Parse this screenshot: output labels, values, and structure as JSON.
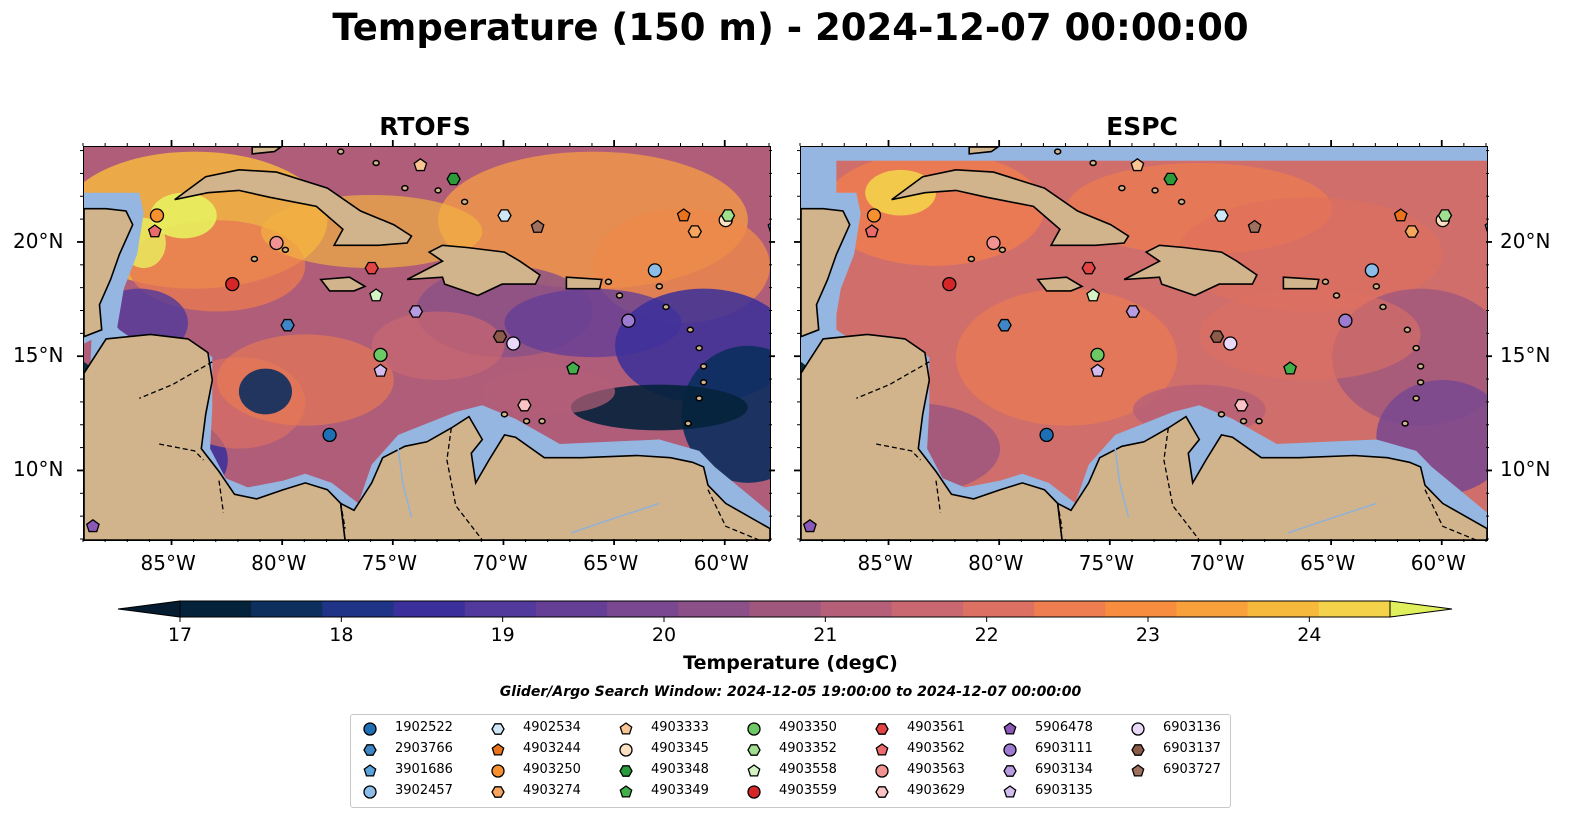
{
  "title": "Temperature (150 m) - 2024-12-07 00:00:00",
  "panels": [
    {
      "title": "RTOFS",
      "model": "rtofs"
    },
    {
      "title": "ESPC",
      "model": "espc"
    }
  ],
  "map_extent": {
    "lon": [
      -89,
      -58
    ],
    "lat": [
      7,
      24.2
    ]
  },
  "lon_ticks": [
    {
      "value": -85,
      "label": "85°W"
    },
    {
      "value": -80,
      "label": "80°W"
    },
    {
      "value": -75,
      "label": "75°W"
    },
    {
      "value": -70,
      "label": "70°W"
    },
    {
      "value": -65,
      "label": "65°W"
    },
    {
      "value": -60,
      "label": "60°W"
    }
  ],
  "lat_ticks": [
    {
      "value": 10,
      "label": "10°N"
    },
    {
      "value": 15,
      "label": "15°N"
    },
    {
      "value": 20,
      "label": "20°N"
    }
  ],
  "colorbar": {
    "label": "Temperature (degC)",
    "min": 17,
    "max": 24.5,
    "step": 0.5,
    "ticks": [
      "17",
      "18",
      "19",
      "20",
      "21",
      "22",
      "23",
      "24"
    ],
    "colors": [
      "#05223b",
      "#0c2f5e",
      "#1f3487",
      "#3a2f9b",
      "#513a9c",
      "#653e96",
      "#794890",
      "#8a5087",
      "#9f577e",
      "#b55f78",
      "#c96871",
      "#dc7062",
      "#ee7d4f",
      "#f68d3f",
      "#f8a13a",
      "#f7b93b",
      "#f4d24a"
    ],
    "extend_low": "#041b30",
    "extend_high": "#dff05c"
  },
  "colors": {
    "ocean": "#95b6e0",
    "land": "#d2b48c",
    "outside": "#082a3d"
  },
  "search_window": "Glider/Argo Search Window: 2024-12-05 19:00:00 to 2024-12-07 00:00:00",
  "legend": {
    "items": [
      {
        "id": "1902522",
        "marker": "circle",
        "color": "#1f6fb5"
      },
      {
        "id": "2903766",
        "marker": "hexagon",
        "color": "#3f86c6"
      },
      {
        "id": "3901686",
        "marker": "pentagon",
        "color": "#5aa2dc"
      },
      {
        "id": "3902457",
        "marker": "circle",
        "color": "#8cbce8"
      },
      {
        "id": "4902534",
        "marker": "hexagon",
        "color": "#cfe6f7"
      },
      {
        "id": "4903244",
        "marker": "pentagon",
        "color": "#e8731c"
      },
      {
        "id": "4903250",
        "marker": "circle",
        "color": "#f7902f"
      },
      {
        "id": "4903274",
        "marker": "hexagon",
        "color": "#f7a65e"
      },
      {
        "id": "4903333",
        "marker": "pentagon",
        "color": "#f9c592"
      },
      {
        "id": "4903345",
        "marker": "circle",
        "color": "#fbe0c2"
      },
      {
        "id": "4903348",
        "marker": "hexagon",
        "color": "#2a9a3b"
      },
      {
        "id": "4903349",
        "marker": "pentagon",
        "color": "#41b04b"
      },
      {
        "id": "4903350",
        "marker": "circle",
        "color": "#6cc964"
      },
      {
        "id": "4903352",
        "marker": "hexagon",
        "color": "#9fdf8f"
      },
      {
        "id": "4903558",
        "marker": "pentagon",
        "color": "#d3f3c5"
      },
      {
        "id": "4903559",
        "marker": "circle",
        "color": "#d62728"
      },
      {
        "id": "4903561",
        "marker": "hexagon",
        "color": "#e34444"
      },
      {
        "id": "4903562",
        "marker": "pentagon",
        "color": "#ea6b6b"
      },
      {
        "id": "4903563",
        "marker": "circle",
        "color": "#f29393"
      },
      {
        "id": "4903629",
        "marker": "hexagon",
        "color": "#fbc3c3"
      },
      {
        "id": "5906478",
        "marker": "pentagon",
        "color": "#8a58b8"
      },
      {
        "id": "6903111",
        "marker": "circle",
        "color": "#9c7bd0"
      },
      {
        "id": "6903134",
        "marker": "hexagon",
        "color": "#b89be0"
      },
      {
        "id": "6903135",
        "marker": "pentagon",
        "color": "#d3bdee"
      },
      {
        "id": "6903136",
        "marker": "circle",
        "color": "#ead8f8"
      },
      {
        "id": "6903137",
        "marker": "hexagon",
        "color": "#8c5a48"
      },
      {
        "id": "6903727",
        "marker": "pentagon",
        "color": "#a0705e"
      }
    ]
  },
  "platforms": [
    {
      "id": "1902522",
      "lon": -77.9,
      "lat": 11.6
    },
    {
      "id": "2903766",
      "lon": -79.8,
      "lat": 16.4
    },
    {
      "id": "3901686",
      "lon": -57.8,
      "lat": 20.7
    },
    {
      "id": "3902457",
      "lon": -63.2,
      "lat": 18.8
    },
    {
      "id": "4902534",
      "lon": -70.0,
      "lat": 21.2
    },
    {
      "id": "4903244",
      "lon": -61.9,
      "lat": 21.2
    },
    {
      "id": "4903250",
      "lon": -85.7,
      "lat": 21.2
    },
    {
      "id": "4903274",
      "lon": -61.4,
      "lat": 20.5
    },
    {
      "id": "4903333",
      "lon": -73.8,
      "lat": 23.4
    },
    {
      "id": "4903345",
      "lon": -60.0,
      "lat": 21.0
    },
    {
      "id": "4903348",
      "lon": -72.3,
      "lat": 22.8
    },
    {
      "id": "4903349",
      "lon": -66.9,
      "lat": 14.5
    },
    {
      "id": "4903350",
      "lon": -75.6,
      "lat": 15.1
    },
    {
      "id": "4903352",
      "lon": -59.9,
      "lat": 21.2
    },
    {
      "id": "4903558",
      "lon": -75.8,
      "lat": 17.7
    },
    {
      "id": "4903559",
      "lon": -82.3,
      "lat": 18.2
    },
    {
      "id": "4903561",
      "lon": -76.0,
      "lat": 18.9
    },
    {
      "id": "4903562",
      "lon": -85.8,
      "lat": 20.5
    },
    {
      "id": "4903563",
      "lon": -80.3,
      "lat": 20.0
    },
    {
      "id": "4903629",
      "lon": -69.1,
      "lat": 12.9
    },
    {
      "id": "5906478",
      "lon": -88.6,
      "lat": 7.6
    },
    {
      "id": "6903111",
      "lon": -64.4,
      "lat": 16.6
    },
    {
      "id": "6903134",
      "lon": -74.0,
      "lat": 17.0
    },
    {
      "id": "6903135",
      "lon": -75.6,
      "lat": 14.4
    },
    {
      "id": "6903136",
      "lon": -69.6,
      "lat": 15.6
    },
    {
      "id": "6903137",
      "lon": -70.2,
      "lat": 15.9
    },
    {
      "id": "6903727",
      "lon": -68.5,
      "lat": 20.7
    }
  ]
}
